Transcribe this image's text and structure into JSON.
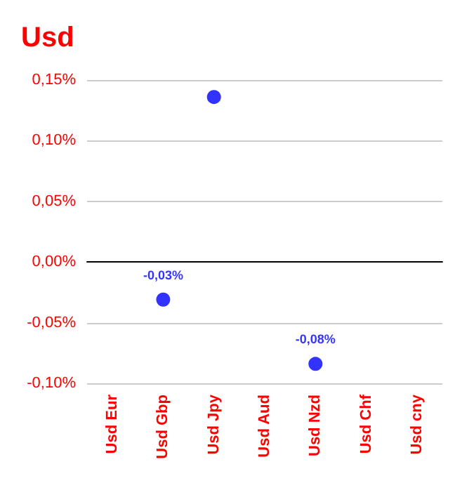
{
  "chart_data": {
    "type": "scatter",
    "title": "Usd",
    "categories": [
      "Usd Eur",
      "Usd Gbp",
      "Usd Jpy",
      "Usd Aud",
      "Usd Nzd",
      "Usd Chf",
      "Usd cny"
    ],
    "values": [
      null,
      -0.031,
      0.136,
      null,
      -0.084,
      null,
      null
    ],
    "value_labels": [
      null,
      "-0,03%",
      null,
      null,
      "-0,08%",
      null,
      null
    ],
    "color": "#0000ff",
    "marker": "circle",
    "grid": "y",
    "ylim": [
      -0.1,
      0.15
    ],
    "yticks": [
      {
        "value": -0.1,
        "label": "-0,10%"
      },
      {
        "value": -0.05,
        "label": "-0,05%"
      },
      {
        "value": 0,
        "label": "0,00%"
      },
      {
        "value": 0.05,
        "label": "0,05%"
      },
      {
        "value": 0.1,
        "label": "0,10%"
      },
      {
        "value": 0.15,
        "label": "0,15%"
      }
    ]
  }
}
